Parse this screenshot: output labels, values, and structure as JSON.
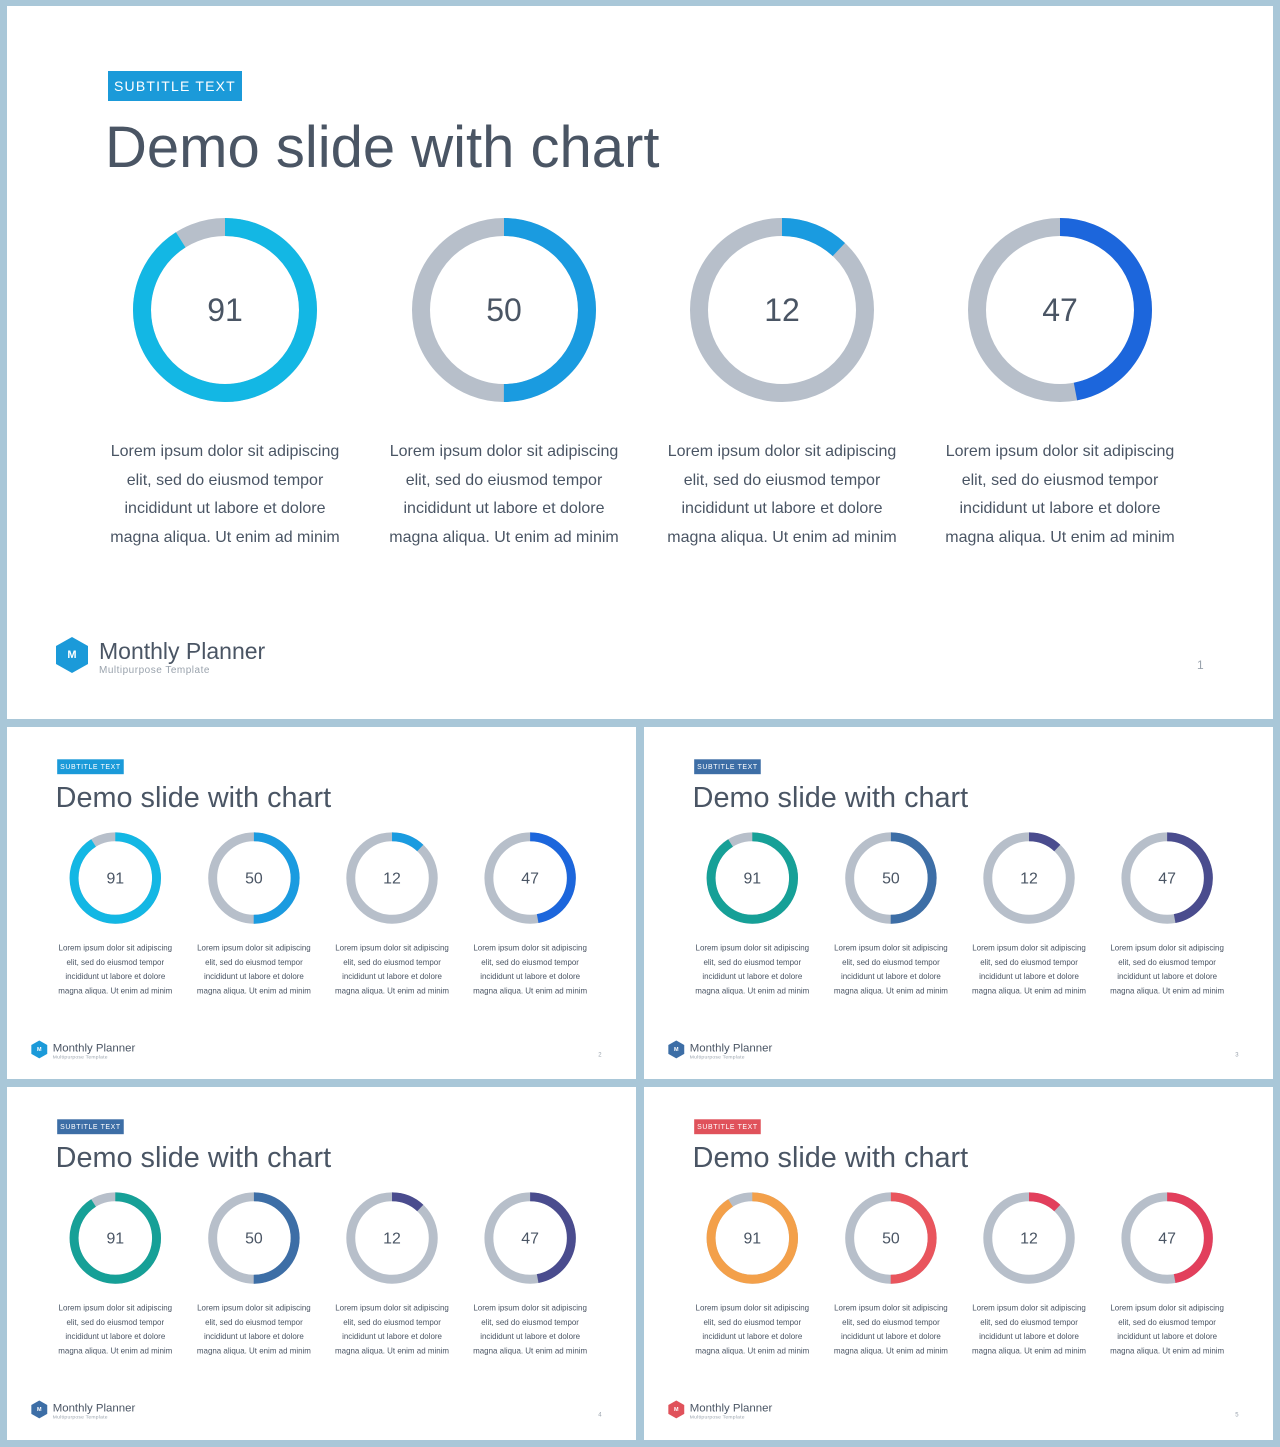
{
  "slides": [
    {
      "subtitle": "SUBTITLE TEXT",
      "title": "Demo slide with chart",
      "brand": "Monthly Planner",
      "brand_sub": "Multipurpose  Template",
      "logo_letter": "M",
      "page": "1",
      "badge_color": "#1b9ad9",
      "logo_color": "#1b9ad9",
      "track_color": "#b7bfca",
      "donuts": [
        {
          "value": 91,
          "label": "91",
          "color": "#13b7e4"
        },
        {
          "value": 50,
          "label": "50",
          "color": "#1a9be0"
        },
        {
          "value": 12,
          "label": "12",
          "color": "#1a9be0"
        },
        {
          "value": 47,
          "label": "47",
          "color": "#1c66dc"
        }
      ],
      "descriptions": [
        "Lorem ipsum dolor sit adipiscing elit, sed do eiusmod tempor incididunt ut labore et dolore magna aliqua. Ut enim ad minim",
        "Lorem ipsum dolor sit adipiscing elit, sed do eiusmod tempor incididunt ut labore et dolore magna aliqua. Ut enim ad minim",
        "Lorem ipsum dolor sit adipiscing elit, sed do eiusmod tempor incididunt ut labore et dolore magna aliqua. Ut enim ad minim",
        "Lorem ipsum dolor sit adipiscing elit, sed do eiusmod tempor incididunt ut labore et dolore magna aliqua. Ut enim ad minim"
      ]
    },
    {
      "subtitle": "SUBTITLE TEXT",
      "title": "Demo slide with chart",
      "brand": "Monthly Planner",
      "brand_sub": "Multipurpose  Template",
      "logo_letter": "M",
      "page": "2",
      "badge_color": "#1b9ad9",
      "logo_color": "#1b9ad9",
      "track_color": "#b7bfca",
      "donuts": [
        {
          "value": 91,
          "label": "91",
          "color": "#13b7e4"
        },
        {
          "value": 50,
          "label": "50",
          "color": "#1a9be0"
        },
        {
          "value": 12,
          "label": "12",
          "color": "#1a9be0"
        },
        {
          "value": 47,
          "label": "47",
          "color": "#1c66dc"
        }
      ],
      "descriptions": [
        "Lorem ipsum dolor sit adipiscing elit, sed do eiusmod tempor incididunt ut labore et dolore magna aliqua. Ut enim ad minim",
        "Lorem ipsum dolor sit adipiscing elit, sed do eiusmod tempor incididunt ut labore et dolore magna aliqua. Ut enim ad minim",
        "Lorem ipsum dolor sit adipiscing elit, sed do eiusmod tempor incididunt ut labore et dolore magna aliqua. Ut enim ad minim",
        "Lorem ipsum dolor sit adipiscing elit, sed do eiusmod tempor incididunt ut labore et dolore magna aliqua. Ut enim ad minim"
      ]
    },
    {
      "subtitle": "SUBTITLE TEXT",
      "title": "Demo slide with chart",
      "brand": "Monthly Planner",
      "brand_sub": "Multipurpose  Template",
      "logo_letter": "M",
      "page": "3",
      "badge_color": "#3d6ea6",
      "logo_color": "#3d6ea6",
      "track_color": "#b7bfca",
      "donuts": [
        {
          "value": 91,
          "label": "91",
          "color": "#16a097"
        },
        {
          "value": 50,
          "label": "50",
          "color": "#3d6ea6"
        },
        {
          "value": 12,
          "label": "12",
          "color": "#4a4c8e"
        },
        {
          "value": 47,
          "label": "47",
          "color": "#4a4c8e"
        }
      ],
      "descriptions": [
        "Lorem ipsum dolor sit adipiscing elit, sed do eiusmod tempor incididunt ut labore et dolore magna aliqua. Ut enim ad minim",
        "Lorem ipsum dolor sit adipiscing elit, sed do eiusmod tempor incididunt ut labore et dolore magna aliqua. Ut enim ad minim",
        "Lorem ipsum dolor sit adipiscing elit, sed do eiusmod tempor incididunt ut labore et dolore magna aliqua. Ut enim ad minim",
        "Lorem ipsum dolor sit adipiscing elit, sed do eiusmod tempor incididunt ut labore et dolore magna aliqua. Ut enim ad minim"
      ]
    },
    {
      "subtitle": "SUBTITLE TEXT",
      "title": "Demo slide with chart",
      "brand": "Monthly Planner",
      "brand_sub": "Multipurpose  Template",
      "logo_letter": "M",
      "page": "4",
      "badge_color": "#3d6ea6",
      "logo_color": "#3d6ea6",
      "track_color": "#b7bfca",
      "donuts": [
        {
          "value": 91,
          "label": "91",
          "color": "#16a097"
        },
        {
          "value": 50,
          "label": "50",
          "color": "#3d6ea6"
        },
        {
          "value": 12,
          "label": "12",
          "color": "#4a4c8e"
        },
        {
          "value": 47,
          "label": "47",
          "color": "#4a4c8e"
        }
      ],
      "descriptions": [
        "Lorem ipsum dolor sit adipiscing elit, sed do eiusmod tempor incididunt ut labore et dolore magna aliqua. Ut enim ad minim",
        "Lorem ipsum dolor sit adipiscing elit, sed do eiusmod tempor incididunt ut labore et dolore magna aliqua. Ut enim ad minim",
        "Lorem ipsum dolor sit adipiscing elit, sed do eiusmod tempor incididunt ut labore et dolore magna aliqua. Ut enim ad minim",
        "Lorem ipsum dolor sit adipiscing elit, sed do eiusmod tempor incididunt ut labore et dolore magna aliqua. Ut enim ad minim"
      ]
    },
    {
      "subtitle": "SUBTITLE TEXT",
      "title": "Demo slide with chart",
      "brand": "Monthly Planner",
      "brand_sub": "Multipurpose  Template",
      "logo_letter": "M",
      "page": "5",
      "badge_color": "#e0525b",
      "logo_color": "#e0525b",
      "track_color": "#b7bfca",
      "donuts": [
        {
          "value": 91,
          "label": "91",
          "color": "#f3a04a"
        },
        {
          "value": 50,
          "label": "50",
          "color": "#e9555d"
        },
        {
          "value": 12,
          "label": "12",
          "color": "#e23f5c"
        },
        {
          "value": 47,
          "label": "47",
          "color": "#e23f5c"
        }
      ],
      "descriptions": [
        "Lorem ipsum dolor sit adipiscing elit, sed do eiusmod tempor incididunt ut labore et dolore magna aliqua. Ut enim ad minim",
        "Lorem ipsum dolor sit adipiscing elit, sed do eiusmod tempor incididunt ut labore et dolore magna aliqua. Ut enim ad minim",
        "Lorem ipsum dolor sit adipiscing elit, sed do eiusmod tempor incididunt ut labore et dolore magna aliqua. Ut enim ad minim",
        "Lorem ipsum dolor sit adipiscing elit, sed do eiusmod tempor incididunt ut labore et dolore magna aliqua. Ut enim ad minim"
      ]
    }
  ]
}
